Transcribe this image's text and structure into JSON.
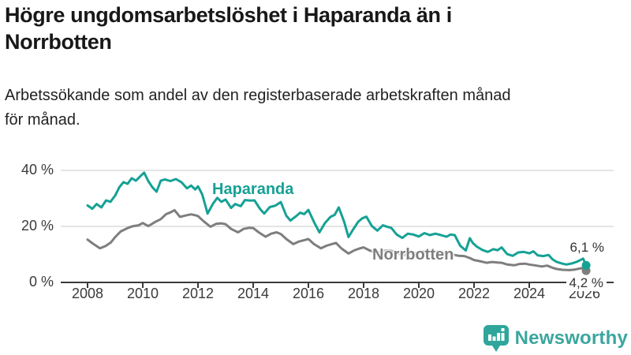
{
  "header": {
    "title_lines": [
      "Högre ungdomsarbetslöshet i Haparanda än i",
      "Norrbotten"
    ],
    "subtitle_lines": [
      "Arbetssökande som andel av den registerbaserade arbetskraften månad",
      "för månad."
    ]
  },
  "chart_data": {
    "type": "line",
    "title": "Högre ungdomsarbetslöshet i Haparanda än i Norrbotten",
    "subtitle": "Arbetssökande som andel av den registerbaserade arbetskraften månad för månad.",
    "unit": "%",
    "grid": "horizontal",
    "axis_color": "#3a3a3a",
    "grid_color": "#dcdcdc",
    "xlim": [
      2007.9,
      2026.4
    ],
    "ylim": [
      0,
      42
    ],
    "x_ticks": [
      2008,
      2010,
      2012,
      2014,
      2016,
      2018,
      2020,
      2022,
      2024,
      2026
    ],
    "y_ticks": [
      {
        "value": 0,
        "label": "0 %"
      },
      {
        "value": 20,
        "label": "20 %"
      },
      {
        "value": 40,
        "label": "40 %"
      }
    ],
    "series": [
      {
        "name": "Haparanda",
        "color": "#16a195",
        "end_label": "6,1 %",
        "end_value": 6.1,
        "points": [
          [
            2008.0,
            27.5
          ],
          [
            2008.17,
            26.3
          ],
          [
            2008.33,
            28.0
          ],
          [
            2008.5,
            26.8
          ],
          [
            2008.67,
            29.3
          ],
          [
            2008.83,
            28.8
          ],
          [
            2009.0,
            31.0
          ],
          [
            2009.15,
            34.0
          ],
          [
            2009.3,
            35.8
          ],
          [
            2009.45,
            35.2
          ],
          [
            2009.6,
            37.2
          ],
          [
            2009.75,
            36.3
          ],
          [
            2009.9,
            37.8
          ],
          [
            2010.05,
            39.2
          ],
          [
            2010.2,
            36.2
          ],
          [
            2010.35,
            34.0
          ],
          [
            2010.5,
            32.4
          ],
          [
            2010.65,
            36.3
          ],
          [
            2010.8,
            36.8
          ],
          [
            2011.0,
            36.2
          ],
          [
            2011.2,
            36.9
          ],
          [
            2011.4,
            35.8
          ],
          [
            2011.6,
            33.6
          ],
          [
            2011.75,
            34.6
          ],
          [
            2011.9,
            33.2
          ],
          [
            2012.0,
            34.3
          ],
          [
            2012.15,
            31.5
          ],
          [
            2012.35,
            24.6
          ],
          [
            2012.55,
            28.2
          ],
          [
            2012.7,
            30.2
          ],
          [
            2012.85,
            28.8
          ],
          [
            2013.0,
            29.6
          ],
          [
            2013.2,
            26.6
          ],
          [
            2013.35,
            28.0
          ],
          [
            2013.55,
            27.2
          ],
          [
            2013.7,
            29.4
          ],
          [
            2013.9,
            29.2
          ],
          [
            2014.05,
            29.3
          ],
          [
            2014.25,
            26.2
          ],
          [
            2014.4,
            24.6
          ],
          [
            2014.6,
            26.9
          ],
          [
            2014.8,
            27.4
          ],
          [
            2015.0,
            28.7
          ],
          [
            2015.2,
            23.8
          ],
          [
            2015.35,
            22.1
          ],
          [
            2015.55,
            23.6
          ],
          [
            2015.7,
            24.9
          ],
          [
            2015.85,
            24.4
          ],
          [
            2016.0,
            25.9
          ],
          [
            2016.2,
            21.6
          ],
          [
            2016.4,
            17.9
          ],
          [
            2016.6,
            21.2
          ],
          [
            2016.8,
            23.4
          ],
          [
            2016.95,
            24.1
          ],
          [
            2017.1,
            26.8
          ],
          [
            2017.3,
            21.5
          ],
          [
            2017.45,
            16.2
          ],
          [
            2017.6,
            18.6
          ],
          [
            2017.8,
            21.6
          ],
          [
            2017.95,
            22.9
          ],
          [
            2018.1,
            23.5
          ],
          [
            2018.3,
            20.1
          ],
          [
            2018.5,
            18.5
          ],
          [
            2018.7,
            20.4
          ],
          [
            2018.85,
            19.9
          ],
          [
            2019.0,
            19.5
          ],
          [
            2019.2,
            17.1
          ],
          [
            2019.4,
            15.9
          ],
          [
            2019.6,
            17.4
          ],
          [
            2019.8,
            17.1
          ],
          [
            2020.0,
            16.4
          ],
          [
            2020.2,
            17.6
          ],
          [
            2020.4,
            16.9
          ],
          [
            2020.6,
            17.4
          ],
          [
            2020.8,
            16.9
          ],
          [
            2021.0,
            16.3
          ],
          [
            2021.15,
            17.1
          ],
          [
            2021.3,
            16.9
          ],
          [
            2021.5,
            13.1
          ],
          [
            2021.7,
            11.4
          ],
          [
            2021.85,
            15.8
          ],
          [
            2021.95,
            14.1
          ],
          [
            2022.1,
            12.8
          ],
          [
            2022.3,
            11.6
          ],
          [
            2022.5,
            10.9
          ],
          [
            2022.7,
            11.9
          ],
          [
            2022.85,
            11.5
          ],
          [
            2023.0,
            12.5
          ],
          [
            2023.2,
            10.1
          ],
          [
            2023.4,
            9.5
          ],
          [
            2023.6,
            10.7
          ],
          [
            2023.8,
            10.9
          ],
          [
            2024.0,
            10.4
          ],
          [
            2024.15,
            11.1
          ],
          [
            2024.3,
            9.7
          ],
          [
            2024.5,
            9.4
          ],
          [
            2024.7,
            9.8
          ],
          [
            2024.85,
            8.2
          ],
          [
            2025.0,
            7.3
          ],
          [
            2025.2,
            6.7
          ],
          [
            2025.35,
            6.4
          ],
          [
            2025.55,
            6.8
          ],
          [
            2025.75,
            7.5
          ],
          [
            2025.95,
            8.5
          ],
          [
            2026.06,
            6.1
          ]
        ]
      },
      {
        "name": "Norrbotten",
        "color": "#7e7e7e",
        "end_label": "4,2 %",
        "end_value": 4.2,
        "points": [
          [
            2008.0,
            15.3
          ],
          [
            2008.2,
            13.8
          ],
          [
            2008.45,
            12.2
          ],
          [
            2008.65,
            13.0
          ],
          [
            2008.85,
            14.3
          ],
          [
            2009.0,
            16.2
          ],
          [
            2009.2,
            18.2
          ],
          [
            2009.45,
            19.4
          ],
          [
            2009.65,
            20.1
          ],
          [
            2009.85,
            20.4
          ],
          [
            2010.0,
            21.2
          ],
          [
            2010.2,
            20.1
          ],
          [
            2010.45,
            21.6
          ],
          [
            2010.65,
            22.6
          ],
          [
            2010.85,
            24.4
          ],
          [
            2011.0,
            25.0
          ],
          [
            2011.15,
            25.8
          ],
          [
            2011.35,
            23.4
          ],
          [
            2011.55,
            23.9
          ],
          [
            2011.75,
            24.3
          ],
          [
            2011.9,
            24.0
          ],
          [
            2012.0,
            23.7
          ],
          [
            2012.2,
            21.9
          ],
          [
            2012.45,
            19.9
          ],
          [
            2012.65,
            20.9
          ],
          [
            2012.85,
            21.1
          ],
          [
            2013.0,
            20.8
          ],
          [
            2013.2,
            19.1
          ],
          [
            2013.45,
            17.9
          ],
          [
            2013.65,
            19.1
          ],
          [
            2013.85,
            19.5
          ],
          [
            2014.0,
            19.4
          ],
          [
            2014.2,
            17.9
          ],
          [
            2014.45,
            16.3
          ],
          [
            2014.65,
            17.4
          ],
          [
            2014.85,
            17.9
          ],
          [
            2015.0,
            17.3
          ],
          [
            2015.2,
            15.5
          ],
          [
            2015.45,
            13.7
          ],
          [
            2015.65,
            14.6
          ],
          [
            2015.85,
            15.1
          ],
          [
            2016.0,
            15.5
          ],
          [
            2016.2,
            13.7
          ],
          [
            2016.45,
            12.2
          ],
          [
            2016.65,
            13.1
          ],
          [
            2016.85,
            13.7
          ],
          [
            2017.0,
            14.1
          ],
          [
            2017.2,
            12.1
          ],
          [
            2017.45,
            10.3
          ],
          [
            2017.65,
            11.4
          ],
          [
            2017.85,
            12.1
          ],
          [
            2018.0,
            12.5
          ],
          [
            2018.2,
            11.5
          ],
          [
            2018.45,
            10.5
          ],
          [
            2018.65,
            11.1
          ],
          [
            2018.85,
            11.4
          ],
          [
            2019.0,
            11.3
          ],
          [
            2019.2,
            10.4
          ],
          [
            2019.45,
            9.7
          ],
          [
            2019.65,
            10.3
          ],
          [
            2019.85,
            10.5
          ],
          [
            2020.0,
            10.7
          ],
          [
            2020.2,
            11.1
          ],
          [
            2020.45,
            10.9
          ],
          [
            2020.65,
            11.0
          ],
          [
            2020.85,
            10.6
          ],
          [
            2021.0,
            10.3
          ],
          [
            2021.2,
            10.0
          ],
          [
            2021.45,
            9.5
          ],
          [
            2021.65,
            9.4
          ],
          [
            2021.85,
            8.7
          ],
          [
            2022.0,
            8.0
          ],
          [
            2022.2,
            7.6
          ],
          [
            2022.45,
            7.0
          ],
          [
            2022.65,
            7.3
          ],
          [
            2022.85,
            7.1
          ],
          [
            2023.0,
            7.0
          ],
          [
            2023.2,
            6.4
          ],
          [
            2023.45,
            6.1
          ],
          [
            2023.65,
            6.6
          ],
          [
            2023.85,
            6.7
          ],
          [
            2024.0,
            6.4
          ],
          [
            2024.2,
            6.1
          ],
          [
            2024.45,
            5.7
          ],
          [
            2024.65,
            6.0
          ],
          [
            2024.85,
            5.2
          ],
          [
            2025.0,
            4.8
          ],
          [
            2025.2,
            4.5
          ],
          [
            2025.45,
            4.4
          ],
          [
            2025.65,
            4.6
          ],
          [
            2025.9,
            5.1
          ],
          [
            2026.06,
            4.2
          ]
        ]
      }
    ]
  },
  "footer": {
    "brand": "Newsworthy",
    "brand_color": "#3ba69e",
    "logo_icon": "bar-chart-speech-bubble"
  }
}
